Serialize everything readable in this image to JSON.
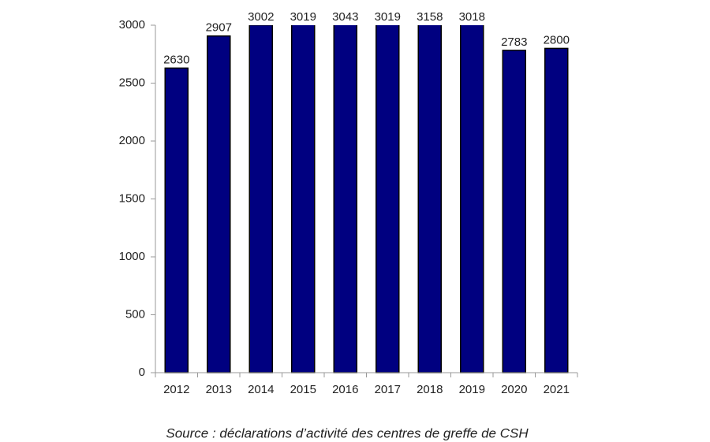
{
  "chart_data": {
    "type": "bar",
    "categories": [
      "2012",
      "2013",
      "2014",
      "2015",
      "2016",
      "2017",
      "2018",
      "2019",
      "2020",
      "2021"
    ],
    "values": [
      2630,
      2907,
      3002,
      3019,
      3043,
      3019,
      3158,
      3018,
      2783,
      2800
    ],
    "color": "#000080",
    "ylim": [
      0,
      3000
    ],
    "yticks": [
      0,
      500,
      1000,
      1500,
      2000,
      2500,
      3000
    ],
    "show_value_labels": true,
    "source": "Source : déclarations d’activité des centres de greffe de CSH"
  }
}
